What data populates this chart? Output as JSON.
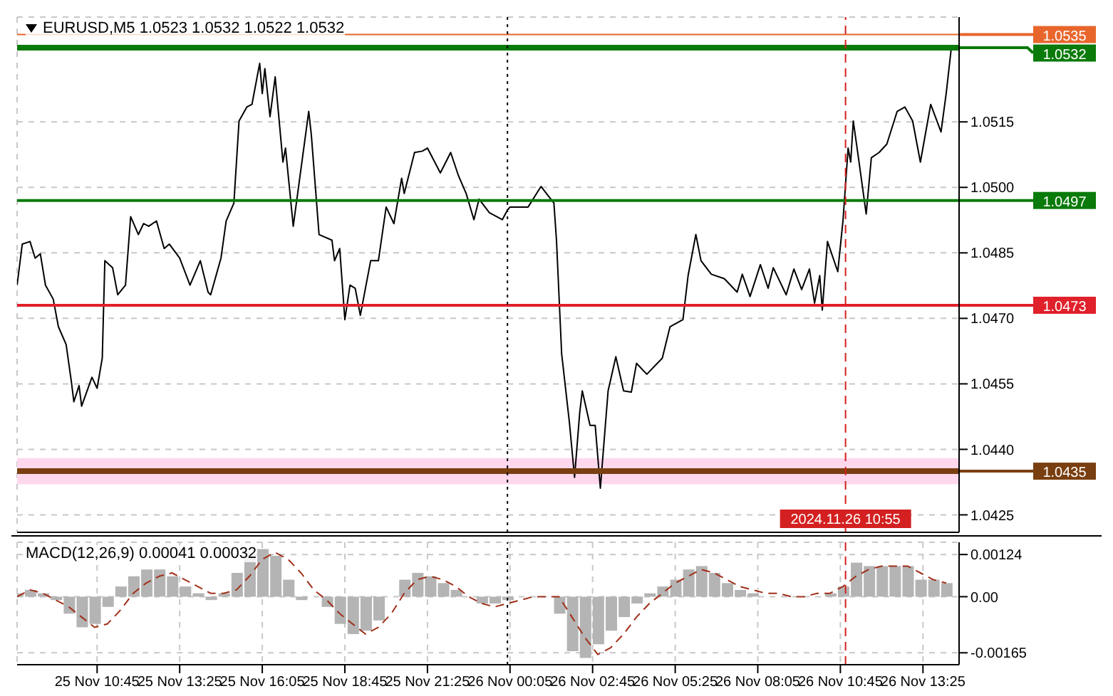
{
  "chart_data": [
    {
      "type": "line",
      "title": "EURUSD,M5  1.0523 1.0532 1.0522 1.0532",
      "marker": "none",
      "grid": true,
      "tick_labels": "y",
      "xlim": [
        "2024-11-25T08:10",
        "2024-11-26T14:35"
      ],
      "xticks": [
        {
          "value": "2024-11-25T10:45",
          "label": null
        },
        {
          "value": "2024-11-25T13:25",
          "label": null
        },
        {
          "value": "2024-11-25T16:05",
          "label": null
        },
        {
          "value": "2024-11-25T18:45",
          "label": null
        },
        {
          "value": "2024-11-25T21:25",
          "label": null
        },
        {
          "value": "2024-11-26T00:05",
          "label": null
        },
        {
          "value": "2024-11-26T02:45",
          "label": null
        },
        {
          "value": "2024-11-26T05:25",
          "label": null
        },
        {
          "value": "2024-11-26T08:05",
          "label": null
        },
        {
          "value": "2024-11-26T10:45",
          "label": null
        },
        {
          "value": "2024-11-26T13:25",
          "label": null
        }
      ],
      "ylim": [
        1.0421,
        1.0539
      ],
      "yticks": [
        {
          "value": 1.0515,
          "label": "1.0515"
        },
        {
          "value": 1.05,
          "label": "1.0500"
        },
        {
          "value": 1.0485,
          "label": "1.0485"
        },
        {
          "value": 1.047,
          "label": "1.0470"
        },
        {
          "value": 1.0455,
          "label": "1.0455"
        },
        {
          "value": 1.044,
          "label": "1.0440"
        },
        {
          "value": 1.0425,
          "label": "1.0425"
        }
      ],
      "x": [
        "2024-11-25T08:10",
        "2024-11-25T08:20",
        "2024-11-25T08:35",
        "2024-11-25T08:45",
        "2024-11-25T08:55",
        "2024-11-25T09:05",
        "2024-11-25T09:20",
        "2024-11-25T09:30",
        "2024-11-25T09:45",
        "2024-11-25T09:55",
        "2024-11-25T10:00",
        "2024-11-25T10:10",
        "2024-11-25T10:15",
        "2024-11-25T10:35",
        "2024-11-25T10:45",
        "2024-11-25T10:55",
        "2024-11-25T11:00",
        "2024-11-25T11:15",
        "2024-11-25T11:25",
        "2024-11-25T11:40",
        "2024-11-25T11:50",
        "2024-11-25T12:05",
        "2024-11-25T12:15",
        "2024-11-25T12:25",
        "2024-11-25T12:40",
        "2024-11-25T12:55",
        "2024-11-25T13:05",
        "2024-11-25T13:25",
        "2024-11-25T13:45",
        "2024-11-25T14:05",
        "2024-11-25T14:20",
        "2024-11-25T14:25",
        "2024-11-25T14:45",
        "2024-11-25T14:55",
        "2024-11-25T15:10",
        "2024-11-25T15:20",
        "2024-11-25T15:35",
        "2024-11-25T15:45",
        "2024-11-25T16:00",
        "2024-11-25T16:05",
        "2024-11-25T16:10",
        "2024-11-25T16:20",
        "2024-11-25T16:30",
        "2024-11-25T16:45",
        "2024-11-25T16:50",
        "2024-11-25T17:05",
        "2024-11-25T17:35",
        "2024-11-25T17:40",
        "2024-11-25T17:55",
        "2024-11-25T18:20",
        "2024-11-25T18:25",
        "2024-11-25T18:35",
        "2024-11-25T18:45",
        "2024-11-25T18:55",
        "2024-11-25T19:05",
        "2024-11-25T19:15",
        "2024-11-25T19:35",
        "2024-11-25T19:50",
        "2024-11-25T20:05",
        "2024-11-25T20:20",
        "2024-11-25T20:35",
        "2024-11-25T20:40",
        "2024-11-25T21:00",
        "2024-11-25T21:15",
        "2024-11-25T21:25",
        "2024-11-25T21:50",
        "2024-11-25T22:10",
        "2024-11-25T22:25",
        "2024-11-25T22:40",
        "2024-11-25T22:55",
        "2024-11-25T23:05",
        "2024-11-25T23:25",
        "2024-11-25T23:50",
        "2024-11-26T00:00",
        "2024-11-26T00:05",
        "2024-11-26T00:40",
        "2024-11-26T01:05",
        "2024-11-26T01:30",
        "2024-11-26T01:35",
        "2024-11-26T01:45",
        "2024-11-26T02:00",
        "2024-11-26T02:10",
        "2024-11-26T02:20",
        "2024-11-26T02:25",
        "2024-11-26T02:40",
        "2024-11-26T02:50",
        "2024-11-26T03:00",
        "2024-11-26T03:15",
        "2024-11-26T03:30",
        "2024-11-26T03:45",
        "2024-11-26T04:00",
        "2024-11-26T04:10",
        "2024-11-26T04:30",
        "2024-11-26T05:00",
        "2024-11-26T05:15",
        "2024-11-26T05:40",
        "2024-11-26T05:50",
        "2024-11-26T06:05",
        "2024-11-26T06:15",
        "2024-11-26T06:35",
        "2024-11-26T07:00",
        "2024-11-26T07:25",
        "2024-11-26T07:35",
        "2024-11-26T07:50",
        "2024-11-26T08:10",
        "2024-11-26T08:25",
        "2024-11-26T08:35",
        "2024-11-26T09:00",
        "2024-11-26T09:15",
        "2024-11-26T09:30",
        "2024-11-26T09:45",
        "2024-11-26T09:55",
        "2024-11-26T10:05",
        "2024-11-26T10:10",
        "2024-11-26T10:20",
        "2024-11-26T10:40",
        "2024-11-26T10:50",
        "2024-11-26T11:00",
        "2024-11-26T11:05",
        "2024-11-26T11:10",
        "2024-11-26T11:20",
        "2024-11-26T11:35",
        "2024-11-26T11:45",
        "2024-11-26T12:00",
        "2024-11-26T12:15",
        "2024-11-26T12:35",
        "2024-11-26T12:50",
        "2024-11-26T13:05",
        "2024-11-26T13:20",
        "2024-11-26T13:40",
        "2024-11-26T14:00",
        "2024-11-26T14:10",
        "2024-11-26T14:20"
      ],
      "series": [
        {
          "color": "#000000",
          "values": [
            1.04776,
            1.0487,
            1.04876,
            1.04838,
            1.04848,
            1.04776,
            1.04744,
            1.04681,
            1.0464,
            1.04556,
            1.04509,
            1.04546,
            1.04499,
            1.04565,
            1.0454,
            1.04609,
            1.04832,
            1.04816,
            1.04754,
            1.04776,
            1.04933,
            1.04892,
            1.04917,
            1.04911,
            1.04923,
            1.0486,
            1.0487,
            1.04838,
            1.04776,
            1.04832,
            1.0476,
            1.04754,
            1.04838,
            1.04923,
            1.04964,
            1.05152,
            1.05184,
            1.0519,
            1.05284,
            1.05215,
            1.05272,
            1.05162,
            1.05253,
            1.05058,
            1.0509,
            1.04911,
            1.05174,
            1.05121,
            1.04892,
            1.04879,
            1.04832,
            1.0486,
            1.04697,
            1.04776,
            1.04769,
            1.04707,
            1.04832,
            1.04832,
            1.04955,
            1.04917,
            1.05021,
            1.04986,
            1.0508,
            1.05083,
            1.0509,
            1.05033,
            1.0508,
            1.05027,
            1.04986,
            1.04926,
            1.04973,
            1.04942,
            1.04926,
            1.04948,
            1.04955,
            1.04955,
            1.05002,
            1.04964,
            1.04879,
            1.04619,
            1.04462,
            1.04336,
            1.04484,
            1.04534,
            1.04455,
            1.04455,
            1.04311,
            1.04534,
            1.04612,
            1.04534,
            1.04531,
            1.04597,
            1.04572,
            1.04609,
            1.04681,
            1.04697,
            1.04798,
            1.04892,
            1.04832,
            1.04801,
            1.04791,
            1.0476,
            1.04801,
            1.0475,
            1.04823,
            1.04769,
            1.04816,
            1.04754,
            1.04813,
            1.04766,
            1.04813,
            1.04735,
            1.04798,
            1.04719,
            1.04876,
            1.04807,
            1.04923,
            1.0509,
            1.05058,
            1.05152,
            1.05068,
            1.04939,
            1.05068,
            1.0508,
            1.05099,
            1.05174,
            1.05184,
            1.05152,
            1.05058,
            1.0519,
            1.05127,
            1.05215,
            1.0532
          ]
        }
      ],
      "ref_lines": [
        {
          "axis": "y",
          "value": 1.0535,
          "label": "1.0535",
          "color": "#e8662c"
        },
        {
          "axis": "y",
          "value": 1.0532,
          "label": "1.0532",
          "color": "#0a7a0a"
        },
        {
          "axis": "y",
          "value": 1.0497,
          "label": "1.0497",
          "color": "#0a7a0a"
        },
        {
          "axis": "y",
          "value": 1.0473,
          "label": "1.0473",
          "color": "#e0202a"
        },
        {
          "axis": "y",
          "value": 1.0435,
          "label": "1.0435",
          "color": "#7a3f10"
        },
        {
          "axis": "x",
          "value": "2024-11-26T00:00",
          "color": "#000000",
          "line_style": "dotted"
        },
        {
          "axis": "x",
          "value": "2024-11-26T10:55",
          "label": "2024.11.26 10:55",
          "color": "#d42020",
          "line_style": "dashed"
        }
      ],
      "bands": [
        {
          "axis": "y",
          "from": 1.0432,
          "to": 1.0438,
          "color": "#ffd8ee"
        }
      ]
    },
    {
      "type": "bar",
      "title": "MACD(12,26,9) 0.00041 0.00032",
      "grid": true,
      "xlim": [
        "2024-11-25T08:10",
        "2024-11-26T14:35"
      ],
      "xticks": [
        {
          "value": "2024-11-25T10:45",
          "label": "25 Nov 10:45"
        },
        {
          "value": "2024-11-25T13:25",
          "label": "25 Nov 13:25"
        },
        {
          "value": "2024-11-25T16:05",
          "label": "25 Nov 16:05"
        },
        {
          "value": "2024-11-25T18:45",
          "label": "25 Nov 18:45"
        },
        {
          "value": "2024-11-25T21:25",
          "label": "25 Nov 21:25"
        },
        {
          "value": "2024-11-26T00:05",
          "label": "26 Nov 00:05"
        },
        {
          "value": "2024-11-26T02:45",
          "label": "26 Nov 02:45"
        },
        {
          "value": "2024-11-26T05:25",
          "label": "26 Nov 05:25"
        },
        {
          "value": "2024-11-26T08:05",
          "label": "26 Nov 08:05"
        },
        {
          "value": "2024-11-26T10:45",
          "label": "26 Nov 10:45"
        },
        {
          "value": "2024-11-26T13:25",
          "label": "26 Nov 13:25"
        }
      ],
      "ylim": [
        -0.002,
        0.0016
      ],
      "yticks": [
        0.00124,
        {
          "value": 0,
          "label": "0.00"
        },
        -0.00165
      ],
      "x": [
        "2024-11-25T08:10",
        "2024-11-25T08:35",
        "2024-11-25T09:00",
        "2024-11-25T09:25",
        "2024-11-25T09:50",
        "2024-11-25T10:15",
        "2024-11-25T10:40",
        "2024-11-25T11:05",
        "2024-11-25T11:30",
        "2024-11-25T11:55",
        "2024-11-25T12:20",
        "2024-11-25T12:45",
        "2024-11-25T13:10",
        "2024-11-25T13:35",
        "2024-11-25T14:00",
        "2024-11-25T14:25",
        "2024-11-25T14:50",
        "2024-11-25T15:15",
        "2024-11-25T15:40",
        "2024-11-25T16:05",
        "2024-11-25T16:30",
        "2024-11-25T16:55",
        "2024-11-25T17:20",
        "2024-11-25T17:45",
        "2024-11-25T18:10",
        "2024-11-25T18:35",
        "2024-11-25T19:00",
        "2024-11-25T19:25",
        "2024-11-25T19:50",
        "2024-11-25T20:15",
        "2024-11-25T20:40",
        "2024-11-25T21:05",
        "2024-11-25T21:30",
        "2024-11-25T21:55",
        "2024-11-25T22:20",
        "2024-11-25T22:45",
        "2024-11-25T23:10",
        "2024-11-25T23:35",
        "2024-11-26T00:00",
        "2024-11-26T00:25",
        "2024-11-26T00:50",
        "2024-11-26T01:15",
        "2024-11-26T01:40",
        "2024-11-26T02:05",
        "2024-11-26T02:30",
        "2024-11-26T02:55",
        "2024-11-26T03:20",
        "2024-11-26T03:45",
        "2024-11-26T04:10",
        "2024-11-26T04:35",
        "2024-11-26T05:00",
        "2024-11-26T05:25",
        "2024-11-26T05:50",
        "2024-11-26T06:15",
        "2024-11-26T06:40",
        "2024-11-26T07:05",
        "2024-11-26T07:30",
        "2024-11-26T07:55",
        "2024-11-26T08:20",
        "2024-11-26T08:45",
        "2024-11-26T09:10",
        "2024-11-26T09:35",
        "2024-11-26T10:00",
        "2024-11-26T10:25",
        "2024-11-26T10:50",
        "2024-11-26T11:15",
        "2024-11-26T11:40",
        "2024-11-26T12:05",
        "2024-11-26T12:30",
        "2024-11-26T12:55",
        "2024-11-26T13:20",
        "2024-11-26T13:45",
        "2024-11-26T14:10"
      ],
      "series": [
        {
          "color": "#b4b4b4",
          "values": [
            0.0001,
            0.0002,
            0.0001,
            -0.0001,
            -0.0005,
            -0.0009,
            -0.0008,
            -0.0003,
            0.0003,
            0.0006,
            0.0008,
            0.0008,
            0.0006,
            0.0003,
            0.0001,
            -0.0001,
            0.0001,
            0.0007,
            0.0013,
            0.0014,
            0.0012,
            0.0005,
            -0.0001,
            0,
            -0.0003,
            -0.0008,
            -0.0011,
            -0.001,
            -0.0007,
            0,
            0.0005,
            0.0007,
            0.0006,
            0.0004,
            0.0002,
            0,
            -0.0002,
            -0.0002,
            -0.0001,
            0,
            0,
            0,
            -0.0005,
            -0.0016,
            -0.0018,
            -0.0014,
            -0.001,
            -0.0006,
            -0.0002,
            0.0001,
            0.0003,
            0.0005,
            0.0008,
            0.0009,
            0.0007,
            0.0004,
            0.0002,
            0.0001,
            0,
            0,
            0,
            0,
            0,
            0.0001,
            0.0003,
            0.001,
            0.0009,
            0.0009,
            0.0009,
            0.0009,
            0.0005,
            0.0005,
            0.0004
          ]
        },
        {
          "type": "line",
          "color": "#a0301a",
          "line_style": "dashed",
          "values": [
            0,
            0.0002,
            0.0001,
            -0.0001,
            -0.0003,
            -0.0006,
            -0.0009,
            -0.0008,
            -0.0004,
            0.0001,
            0.0004,
            0.0006,
            0.0007,
            0.0005,
            0.0003,
            0.0001,
            0.0001,
            0.0002,
            0.0006,
            0.0011,
            0.0013,
            0.0011,
            0.0007,
            0.0002,
            -0.0001,
            -0.0005,
            -0.0008,
            -0.0011,
            -0.0009,
            -0.0005,
            0.0001,
            0.0005,
            0.0006,
            0.0005,
            0.0003,
            0,
            -0.0002,
            -0.0003,
            -0.0002,
            -0.0001,
            0,
            0,
            0,
            -0.0006,
            -0.0012,
            -0.0017,
            -0.0015,
            -0.0011,
            -0.0006,
            -0.0002,
            0.0001,
            0.0004,
            0.0006,
            0.0008,
            0.0007,
            0.0005,
            0.0003,
            0.0002,
            0.0001,
            0.0001,
            0,
            0,
            0.0001,
            0.0001,
            0.0003,
            0.0006,
            0.0008,
            0.0009,
            0.0009,
            0.0009,
            0.0007,
            0.0005,
            0.0004
          ]
        }
      ],
      "ref_lines": [
        {
          "axis": "x",
          "value": "2024-11-26T00:00",
          "color": "#000000",
          "line_style": "dotted"
        },
        {
          "axis": "x",
          "value": "2024-11-26T10:55",
          "color": "#d42020",
          "line_style": "dashed"
        }
      ]
    }
  ]
}
